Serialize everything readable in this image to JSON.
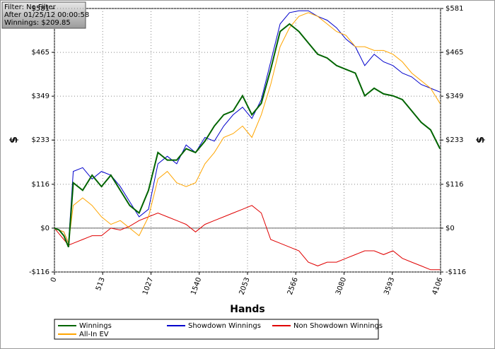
{
  "chart_data": {
    "type": "line",
    "annotations": [
      "Filter: No Filter",
      "After 01/25/12 00:00:58",
      "Winnings: $209.85"
    ],
    "xlabel": "Hands",
    "ylabel": "$",
    "x": [
      0,
      50,
      100,
      150,
      200,
      300,
      400,
      500,
      600,
      700,
      800,
      900,
      1000,
      1100,
      1200,
      1300,
      1400,
      1500,
      1600,
      1700,
      1800,
      1900,
      2000,
      2100,
      2200,
      2300,
      2400,
      2500,
      2600,
      2700,
      2800,
      2900,
      3000,
      3100,
      3200,
      3300,
      3400,
      3500,
      3600,
      3700,
      3800,
      3900,
      4000,
      4100
    ],
    "series": [
      {
        "name": "Winnings",
        "color": "#006400",
        "values": [
          0,
          -5,
          -20,
          -50,
          120,
          100,
          140,
          110,
          140,
          100,
          60,
          40,
          100,
          200,
          180,
          180,
          210,
          200,
          230,
          270,
          300,
          310,
          350,
          300,
          330,
          420,
          520,
          540,
          520,
          490,
          460,
          450,
          430,
          420,
          410,
          350,
          370,
          355,
          350,
          340,
          310,
          280,
          260,
          210
        ]
      },
      {
        "name": "Showdown Winnings",
        "color": "#0000cc",
        "values": [
          0,
          -5,
          -10,
          -40,
          150,
          160,
          130,
          150,
          140,
          110,
          70,
          30,
          50,
          170,
          190,
          170,
          220,
          200,
          240,
          230,
          270,
          300,
          320,
          290,
          340,
          440,
          540,
          570,
          575,
          575,
          560,
          550,
          530,
          500,
          480,
          430,
          460,
          440,
          430,
          410,
          400,
          380,
          370,
          360
        ]
      },
      {
        "name": "Non Showdown Winnings",
        "color": "#e00000",
        "values": [
          0,
          -15,
          -30,
          -45,
          -40,
          -30,
          -20,
          -20,
          0,
          -5,
          5,
          20,
          30,
          40,
          30,
          20,
          10,
          -10,
          10,
          20,
          30,
          40,
          50,
          60,
          40,
          -30,
          -40,
          -50,
          -60,
          -90,
          -100,
          -90,
          -90,
          -80,
          -70,
          -60,
          -60,
          -70,
          -60,
          -80,
          -90,
          -100,
          -110,
          -110
        ]
      },
      {
        "name": "All-In EV",
        "color": "#ffa500",
        "values": [
          0,
          -5,
          -10,
          -40,
          60,
          80,
          60,
          30,
          10,
          20,
          0,
          -20,
          30,
          130,
          150,
          120,
          110,
          120,
          170,
          200,
          240,
          250,
          270,
          240,
          300,
          380,
          480,
          530,
          560,
          570,
          560,
          540,
          520,
          510,
          480,
          480,
          470,
          470,
          460,
          440,
          410,
          390,
          370,
          330
        ]
      }
    ],
    "xlim": [
      0,
      4106
    ],
    "xticks": [
      0,
      513,
      1027,
      1540,
      2053,
      2566,
      3080,
      3593,
      4106
    ],
    "ylim": [
      -116,
      581
    ],
    "yticks": [
      {
        "value": -116,
        "label": "-$116"
      },
      {
        "value": 0,
        "label": "$0"
      },
      {
        "value": 116,
        "label": "$116"
      },
      {
        "value": 233,
        "label": "$233"
      },
      {
        "value": 349,
        "label": "$349"
      },
      {
        "value": 465,
        "label": "$465"
      },
      {
        "value": 581,
        "label": "$581"
      }
    ],
    "grid": true
  }
}
